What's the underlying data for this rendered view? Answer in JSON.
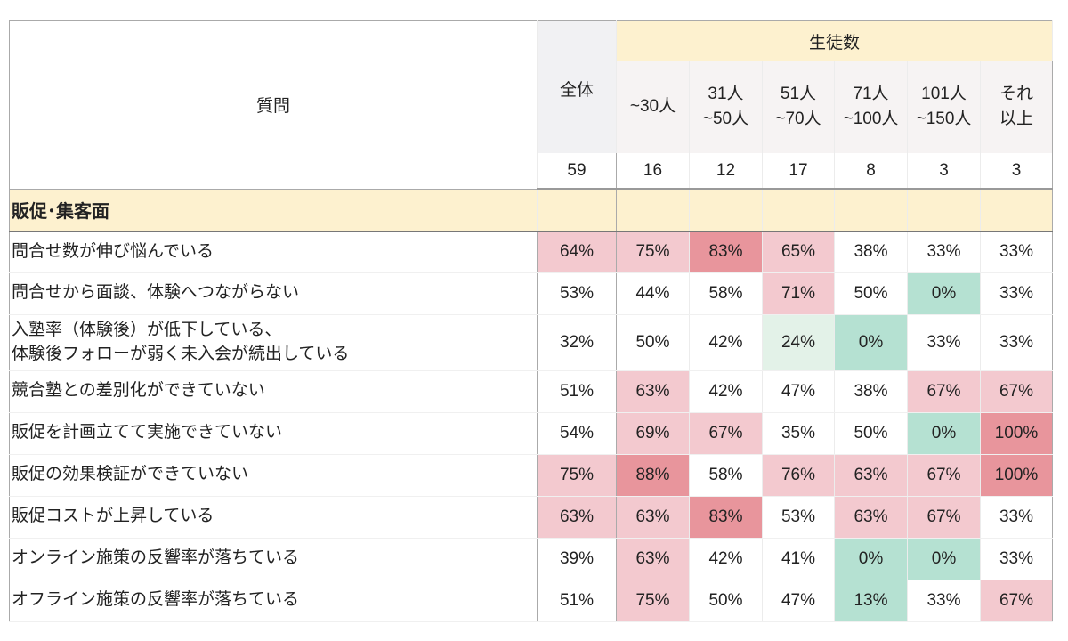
{
  "header": {
    "question_label": "質問",
    "overall_label": "全体",
    "group_label": "生徒数",
    "groups": [
      {
        "line1": "~30人",
        "line2": ""
      },
      {
        "line1": "31人",
        "line2": "~50人"
      },
      {
        "line1": "51人",
        "line2": "~70人"
      },
      {
        "line1": "71人",
        "line2": "~100人"
      },
      {
        "line1": "101人",
        "line2": "~150人"
      },
      {
        "line1": "それ",
        "line2": "以上"
      }
    ],
    "counts": [
      "59",
      "16",
      "12",
      "17",
      "8",
      "3",
      "3"
    ]
  },
  "section": {
    "label": "販促･集客面"
  },
  "rows": [
    {
      "q1": "問合せ数が伸び悩んでいる",
      "q2": "",
      "v": [
        "64%",
        "75%",
        "83%",
        "65%",
        "38%",
        "33%",
        "33%"
      ]
    },
    {
      "q1": "問合せから面談、体験へつながらない",
      "q2": "",
      "v": [
        "53%",
        "44%",
        "58%",
        "71%",
        "50%",
        "0%",
        "33%"
      ]
    },
    {
      "q1": "入塾率（体験後）が低下している、",
      "q2": "体験後フォローが弱く未入会が続出している",
      "v": [
        "32%",
        "50%",
        "42%",
        "24%",
        "0%",
        "33%",
        "33%"
      ]
    },
    {
      "q1": "競合塾との差別化ができていない",
      "q2": "",
      "v": [
        "51%",
        "63%",
        "42%",
        "47%",
        "38%",
        "67%",
        "67%"
      ]
    },
    {
      "q1": "販促を計画立てて実施できていない",
      "q2": "",
      "v": [
        "54%",
        "69%",
        "67%",
        "35%",
        "50%",
        "0%",
        "100%"
      ]
    },
    {
      "q1": "販促の効果検証ができていない",
      "q2": "",
      "v": [
        "75%",
        "88%",
        "58%",
        "76%",
        "63%",
        "67%",
        "100%"
      ]
    },
    {
      "q1": "販促コストが上昇している",
      "q2": "",
      "v": [
        "63%",
        "63%",
        "83%",
        "53%",
        "63%",
        "67%",
        "33%"
      ]
    },
    {
      "q1": "オンライン施策の反響率が落ちている",
      "q2": "",
      "v": [
        "39%",
        "63%",
        "42%",
        "41%",
        "0%",
        "0%",
        "33%"
      ]
    },
    {
      "q1": "オフライン施策の反響率が落ちている",
      "q2": "",
      "v": [
        "51%",
        "75%",
        "50%",
        "47%",
        "13%",
        "33%",
        "67%"
      ]
    }
  ],
  "colors": {
    "high": "#e8959c",
    "mid": "#f3c9cf",
    "low": "#b5e1d2",
    "lowish": "#e3f2e8",
    "neutral": "#ffffff",
    "header_yellow": "#fdf1cf"
  },
  "cell_colors": [
    [
      "mid",
      "mid",
      "high",
      "mid",
      "neutral",
      "neutral",
      "neutral"
    ],
    [
      "neutral",
      "neutral",
      "neutral",
      "mid",
      "neutral",
      "low",
      "neutral"
    ],
    [
      "neutral",
      "neutral",
      "neutral",
      "lowish",
      "low",
      "neutral",
      "neutral"
    ],
    [
      "neutral",
      "mid",
      "neutral",
      "neutral",
      "neutral",
      "mid",
      "mid"
    ],
    [
      "neutral",
      "mid",
      "mid",
      "neutral",
      "neutral",
      "low",
      "high"
    ],
    [
      "mid",
      "high",
      "neutral",
      "mid",
      "mid",
      "mid",
      "high"
    ],
    [
      "mid",
      "mid",
      "high",
      "neutral",
      "mid",
      "mid",
      "neutral"
    ],
    [
      "neutral",
      "mid",
      "neutral",
      "neutral",
      "low",
      "low",
      "neutral"
    ],
    [
      "neutral",
      "mid",
      "neutral",
      "neutral",
      "low",
      "neutral",
      "mid"
    ]
  ]
}
